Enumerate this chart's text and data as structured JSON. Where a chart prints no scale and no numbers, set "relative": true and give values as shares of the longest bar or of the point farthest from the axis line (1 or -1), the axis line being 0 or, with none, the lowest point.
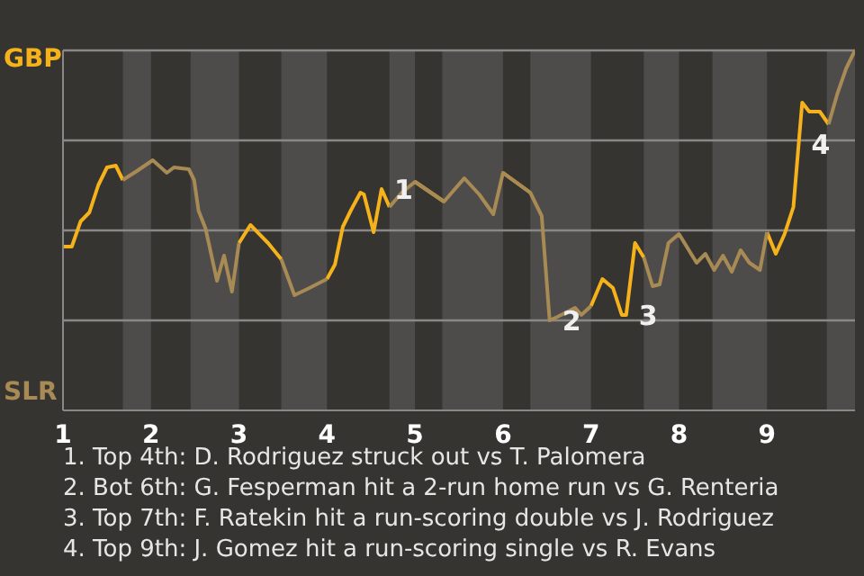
{
  "chart_data": {
    "type": "line",
    "relative": true,
    "x": [
      1,
      1.1,
      1.2,
      1.3,
      1.4,
      1.5,
      1.6,
      1.68,
      1.84,
      2.02,
      2.18,
      2.26,
      2.43,
      2.49,
      2.54,
      2.62,
      2.75,
      2.83,
      2.92,
      3,
      3.13,
      3.33,
      3.48,
      3.63,
      3.8,
      4,
      4.09,
      4.18,
      4.27,
      4.38,
      4.42,
      4.53,
      4.62,
      4.71,
      4.85,
      5,
      5.33,
      5.56,
      5.73,
      5.89,
      6,
      6.31,
      6.44,
      6.53,
      6.62,
      6.82,
      6.89,
      7,
      7.13,
      7.25,
      7.35,
      7.4,
      7.5,
      7.6,
      7.7,
      7.78,
      7.88,
      8,
      8.2,
      8.3,
      8.4,
      8.5,
      8.6,
      8.7,
      8.8,
      8.92,
      9,
      9.1,
      9.2,
      9.3,
      9.36,
      9.4,
      9.48,
      9.6,
      9.7,
      9.8,
      9.9,
      10
    ],
    "series": [
      {
        "color": "#f5b21a",
        "values": [
          0.455,
          0.455,
          0.525,
          0.55,
          0.625,
          0.675,
          0.68,
          0.64,
          null,
          null,
          null,
          null,
          null,
          null,
          null,
          null,
          null,
          null,
          null,
          0.465,
          0.515,
          0.465,
          0.42,
          null,
          null,
          0.365,
          0.405,
          0.51,
          0.555,
          0.605,
          0.6,
          0.495,
          0.615,
          0.565,
          null,
          0.635,
          0.58,
          null,
          null,
          null,
          0.66,
          0.605,
          null,
          null,
          null,
          null,
          null,
          0.29,
          0.365,
          0.34,
          0.265,
          0.265,
          0.465,
          0.425,
          null,
          null,
          null,
          null,
          null,
          null,
          null,
          null,
          null,
          null,
          null,
          null,
          0.495,
          0.435,
          0.49,
          0.565,
          0.74,
          0.855,
          0.83,
          0.83,
          0.795,
          null,
          null,
          null
        ]
      },
      {
        "color": "#a88a55",
        "values": [
          null,
          null,
          null,
          null,
          null,
          null,
          null,
          0.64,
          0.665,
          0.695,
          0.66,
          0.675,
          0.67,
          0.64,
          0.555,
          0.505,
          0.36,
          0.43,
          0.33,
          0.465,
          null,
          null,
          0.42,
          0.32,
          0.34,
          0.365,
          null,
          null,
          null,
          null,
          null,
          null,
          null,
          0.565,
          0.605,
          0.635,
          0.58,
          0.645,
          0.6,
          0.545,
          0.66,
          0.605,
          0.54,
          0.25,
          0.26,
          0.285,
          0.265,
          0.29,
          null,
          null,
          null,
          null,
          null,
          0.425,
          0.345,
          0.35,
          0.465,
          0.49,
          0.41,
          0.435,
          0.39,
          0.43,
          0.385,
          0.445,
          0.41,
          0.39,
          0.495,
          null,
          null,
          null,
          null,
          null,
          null,
          null,
          0.795,
          0.88,
          0.95,
          1
        ]
      }
    ],
    "xlim": [
      1,
      10
    ],
    "xticks": [
      1,
      2,
      3,
      4,
      5,
      6,
      7,
      8,
      9
    ],
    "ref_lines": [
      {
        "axis": "y",
        "value": 0.25,
        "color": "#8a8886"
      },
      {
        "axis": "y",
        "value": 0.5,
        "color": "#8a8886"
      },
      {
        "axis": "y",
        "value": 0.75,
        "color": "#8a8886"
      },
      {
        "axis": "y",
        "value": 1,
        "color": "#8a8886"
      }
    ],
    "marker": "none",
    "line_style": "solid",
    "bands": [
      {
        "axis": "x",
        "from": 1.68,
        "to": 2,
        "color": "#4d4c4a"
      },
      {
        "axis": "x",
        "from": 2.45,
        "to": 3,
        "color": "#4d4c4a"
      },
      {
        "axis": "x",
        "from": 3.48,
        "to": 4,
        "color": "#4d4c4a"
      },
      {
        "axis": "x",
        "from": 4.71,
        "to": 5,
        "color": "#4d4c4a"
      },
      {
        "axis": "x",
        "from": 5.31,
        "to": 6,
        "color": "#4d4c4a"
      },
      {
        "axis": "x",
        "from": 6.31,
        "to": 7,
        "color": "#4d4c4a"
      },
      {
        "axis": "x",
        "from": 7.6,
        "to": 8,
        "color": "#4d4c4a"
      },
      {
        "axis": "x",
        "from": 8.38,
        "to": 9,
        "color": "#4d4c4a"
      },
      {
        "axis": "x",
        "from": 9.68,
        "to": 10,
        "color": "#4d4c4a"
      }
    ],
    "annotations": [
      {
        "text": "1",
        "x": 4.62,
        "y": 0.615
      },
      {
        "text": "2",
        "x": 6.53,
        "y": 0.25
      },
      {
        "text": "3",
        "x": 7.4,
        "y": 0.265
      },
      {
        "text": "4",
        "x": 9.36,
        "y": 0.74
      },
      "GBP",
      "SLR",
      "1. Top 4th: D. Rodriguez struck out vs T. Palomera",
      "2. Bot 6th: G. Fesperman hit a 2-run home run vs G. Renteria",
      "3. Top 7th: F. Ratekin hit a run-scoring double vs J. Rodriguez",
      "4. Top 9th: J. Gomez hit a run-scoring single vs R. Evans"
    ]
  }
}
